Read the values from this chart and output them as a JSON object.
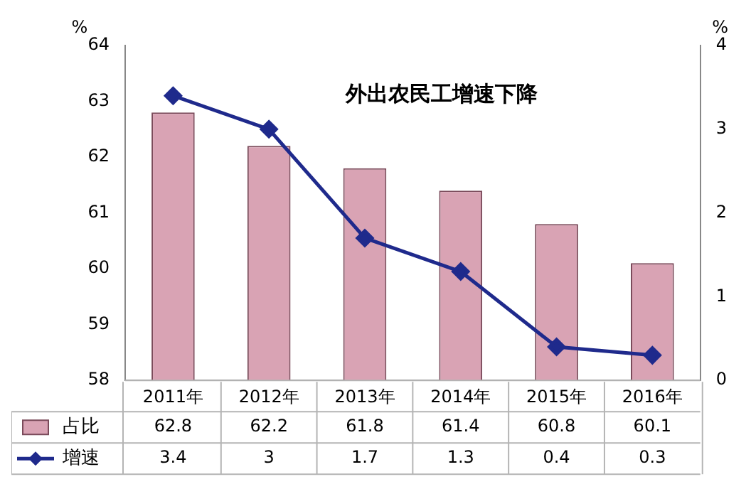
{
  "chart_data": {
    "type": "bar",
    "title": "外出农民工增速下降",
    "ylabel": "%",
    "y2label": "%",
    "categories": [
      "2011年",
      "2012年",
      "2013年",
      "2014年",
      "2015年",
      "2016年"
    ],
    "series": [
      {
        "name": "占比",
        "color": "#d9a3b4",
        "values": [
          62.8,
          62.2,
          61.8,
          61.4,
          60.8,
          60.1
        ]
      },
      {
        "name": "增速",
        "type": "line",
        "axis": "y2",
        "color": "#1f2a8c",
        "values": [
          3.4,
          3,
          1.7,
          1.3,
          0.4,
          0.3
        ]
      }
    ],
    "ylim": [
      58,
      64
    ],
    "yticks": [
      58,
      59,
      60,
      61,
      62,
      63,
      64
    ],
    "y2lim": [
      0,
      4
    ],
    "y2ticks": [
      0,
      1,
      2,
      3,
      4
    ],
    "marker": "diamond",
    "data_labels": true,
    "legend": "bottom"
  }
}
